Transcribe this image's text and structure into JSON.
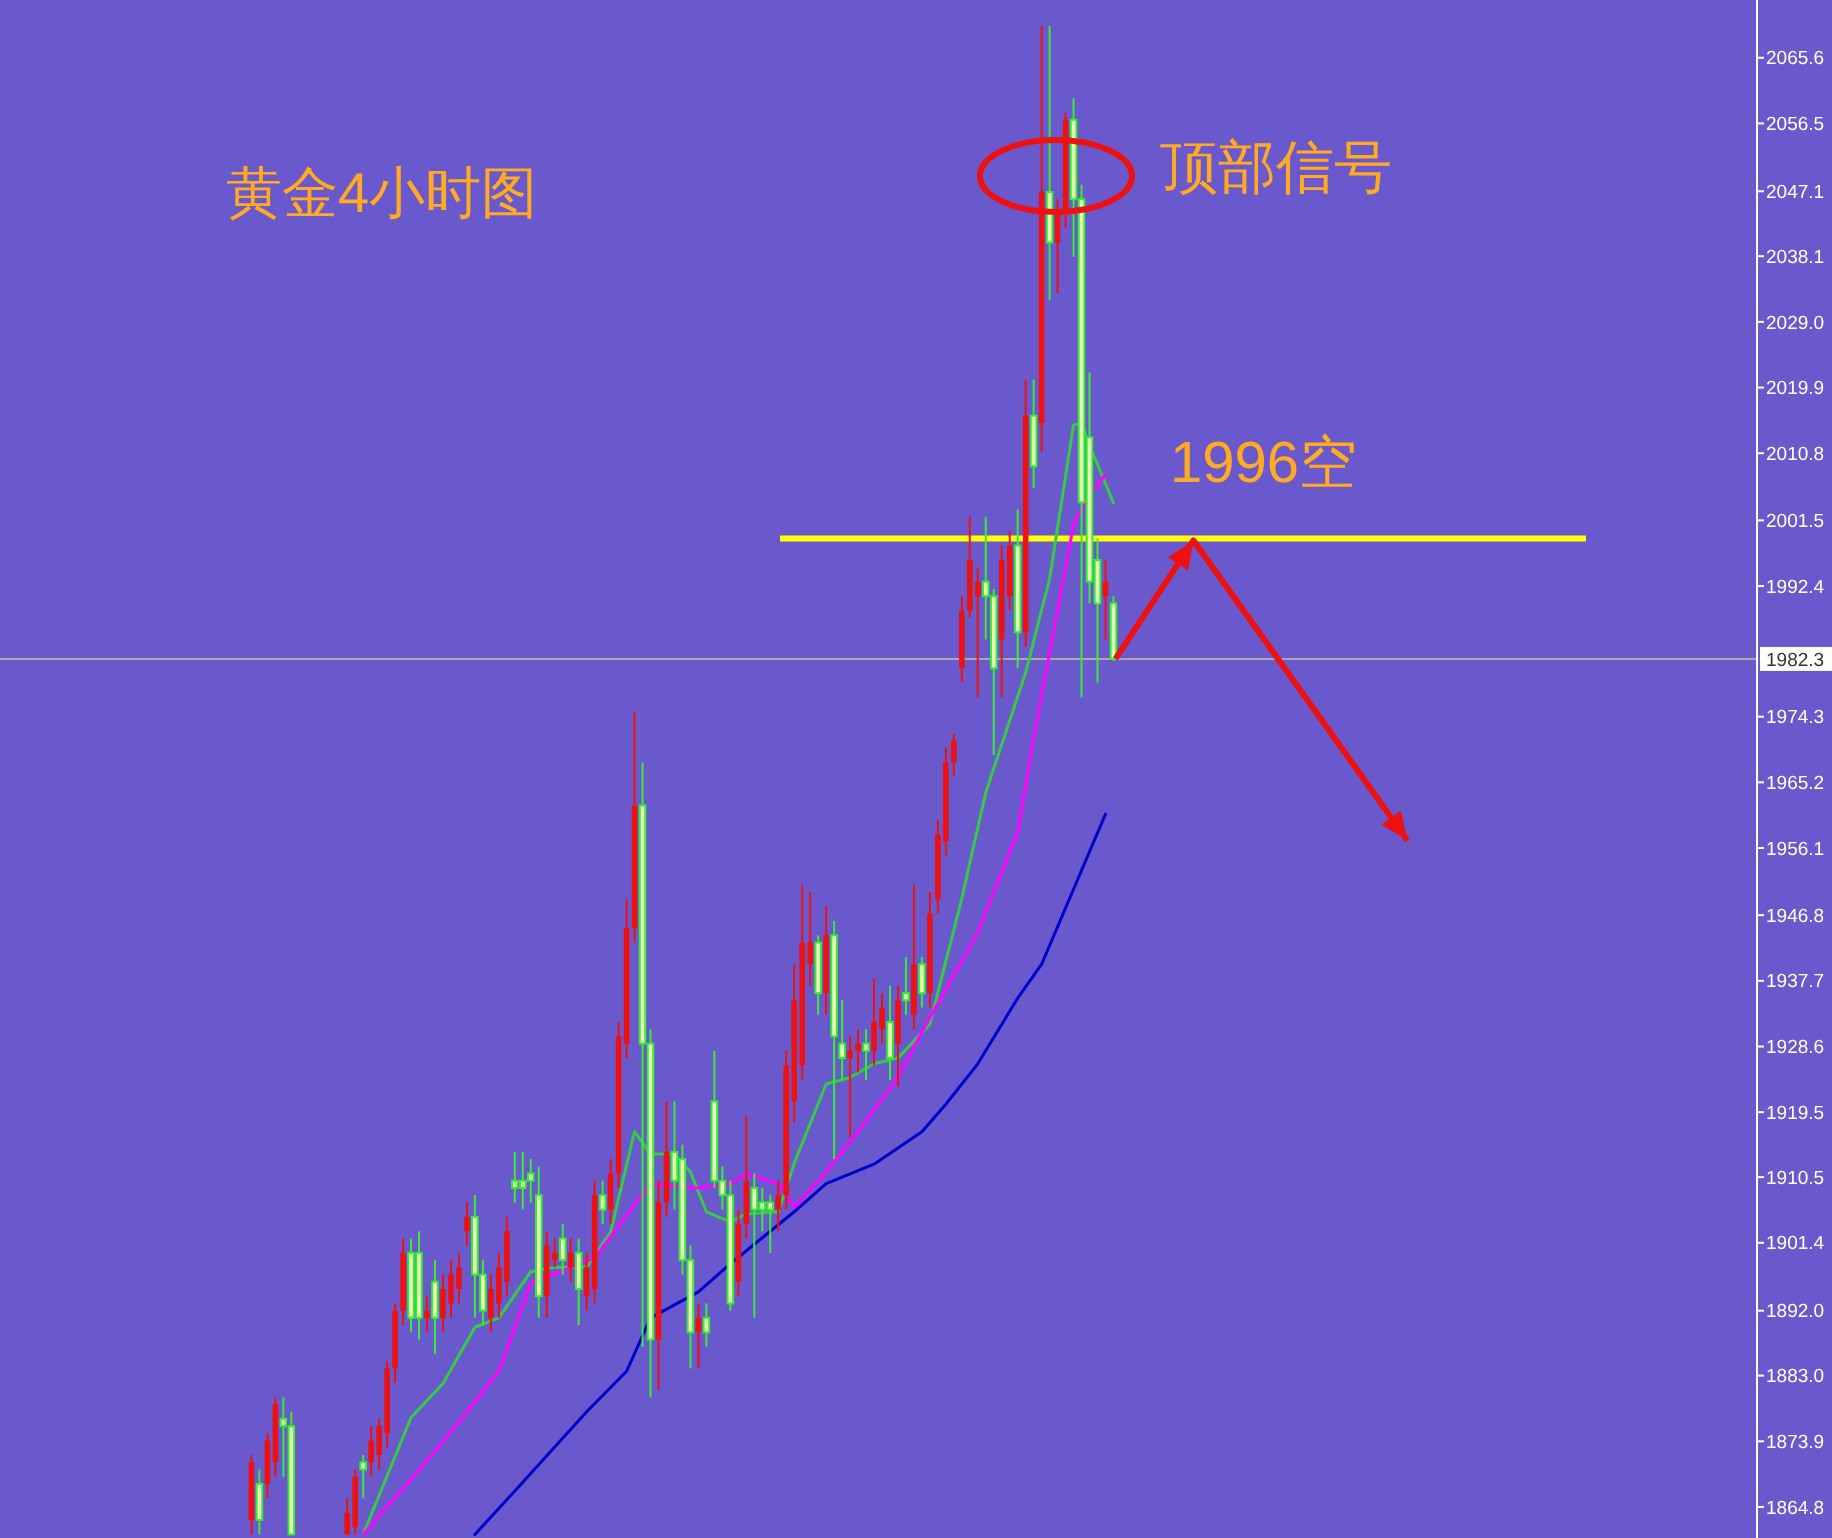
{
  "chart_data": {
    "type": "candlestick",
    "title": "黄金4小时图",
    "annotations": [
      "顶部信号"
    ],
    "categories": [
      null,
      null,
      null,
      null,
      null,
      null,
      null,
      null,
      null,
      null,
      null,
      null,
      null,
      null,
      null,
      null,
      null,
      null,
      null,
      null,
      null,
      null,
      null,
      null,
      null,
      null,
      null,
      null,
      null,
      null,
      null,
      null,
      null,
      null,
      null,
      null,
      null,
      null,
      null,
      null,
      null,
      null,
      null,
      null,
      null,
      null,
      null,
      null,
      null,
      null,
      null,
      null,
      null,
      null,
      null,
      null,
      null,
      null,
      null,
      null,
      null,
      null,
      null,
      null,
      null,
      null,
      null,
      null,
      null,
      null,
      null,
      null,
      null,
      null,
      null,
      null,
      null,
      null,
      null,
      null,
      null,
      null,
      null,
      null,
      null,
      null,
      null,
      null,
      null,
      null,
      null,
      null,
      null,
      null,
      null,
      null,
      null,
      null,
      null,
      null,
      null,
      null,
      null,
      null,
      null,
      null,
      null,
      null,
      null,
      null,
      null,
      null,
      null,
      null,
      null,
      null,
      null,
      null,
      null,
      null,
      null,
      null,
      null,
      null,
      null,
      null,
      null,
      null,
      null,
      null,
      null,
      null,
      null,
      null,
      null,
      null,
      null,
      null,
      null,
      null,
      null,
      null,
      null,
      null,
      null,
      null,
      null,
      null,
      null,
      null,
      null,
      null,
      null,
      null,
      null,
      null,
      null,
      null,
      null,
      null,
      null,
      null,
      null,
      null,
      null,
      null,
      null,
      null,
      null,
      null,
      null,
      null,
      null,
      null,
      null,
      null,
      null,
      null,
      null,
      null,
      null,
      null,
      null,
      null,
      null,
      null,
      null,
      null,
      null,
      null,
      null,
      null,
      null,
      null,
      null,
      null,
      null,
      null,
      null,
      null,
      null,
      null,
      null,
      null,
      null,
      null,
      null,
      null,
      null,
      null,
      null,
      null,
      null,
      null,
      null,
      null,
      null,
      null,
      null,
      null
    ],
    "ylim": [
      1860.5,
      2073.6
    ],
    "yticks": [
      2065.6,
      2056.5,
      2047.1,
      2038.1,
      {
        "value": 2029,
        "label": "2029.0"
      },
      2019.9,
      2010.8,
      2001.5,
      1992.4,
      1974.3,
      1965.2,
      1956.1,
      1946.8,
      1937.7,
      1928.6,
      1919.5,
      1910.5,
      1901.4,
      {
        "value": 1892,
        "label": "1892.0"
      },
      {
        "value": 1883,
        "label": "1883.0"
      },
      1873.9,
      1864.8
    ],
    "tick_labels": "y",
    "grid": false,
    "ref_lines": [
      {
        "axis": "y",
        "value": 1982.3,
        "label": "1982.3",
        "color": "#a8a8a8"
      },
      {
        "axis": "y",
        "value": 1999,
        "label": "1996空",
        "color": "#ffff00"
      }
    ],
    "series": [
      {
        "type": "candlestick",
        "colors": [
          null,
          null,
          null,
          null,
          null,
          null,
          null,
          null,
          null,
          null,
          null,
          null,
          null,
          null,
          null,
          null,
          null,
          null,
          null,
          null,
          null,
          null,
          null,
          null,
          null,
          null,
          null,
          null,
          null,
          null,
          null,
          "#ee1111",
          "#33ee33",
          "#ee1111",
          "#ee1111",
          "#33ee33",
          "#33ee33",
          null,
          null,
          null,
          null,
          null,
          null,
          "#ee1111",
          "#ee1111",
          "#33ee33",
          "#ee1111",
          "#ee1111",
          "#ee1111",
          "#ee1111",
          "#ee1111",
          "#33ee33",
          "#33ee33",
          "#ee1111",
          "#33ee33",
          "#ee1111",
          "#ee1111",
          "#ee1111",
          "#ee1111",
          "#33ee33",
          "#33ee33",
          "#ee1111",
          "#ee1111",
          "#ee1111",
          "#33ee33",
          "#33ee33",
          "#33ee33",
          "#33ee33",
          "#ee1111",
          "#ee1111",
          "#33ee33",
          "#ee1111",
          "#33ee33",
          "#ee1111",
          "#ee1111",
          "#33ee33",
          "#ee1111",
          "#ee1111",
          "#ee1111",
          "#ee1111",
          "#33ee33",
          "#33ee33",
          "#ee1111",
          "#ee1111",
          "#33ee33",
          "#33ee33",
          "#33ee33",
          "#ee1111",
          "#33ee33",
          "#33ee33",
          "#33ee33",
          "#33ee33",
          "#ee1111",
          "#ee1111",
          "#33ee33",
          "#33ee33",
          "#33ee33",
          "#ee1111",
          "#ee1111",
          "#ee1111",
          "#ee1111",
          "#ee1111",
          "#33ee33",
          "#ee1111",
          "#33ee33",
          "#33ee33",
          "#ee1111",
          "#ee1111",
          "#33ee33",
          "#ee1111",
          "#ee1111",
          "#33ee33",
          "#ee1111",
          "#33ee33",
          "#ee1111",
          "#33ee33",
          "#ee1111",
          "#ee1111",
          "#ee1111",
          "#ee1111",
          "#ee1111",
          "#ee1111",
          "#ee1111",
          "#33ee33",
          "#33ee33",
          "#ee1111",
          "#ee1111",
          "#33ee33",
          "#ee1111",
          "#33ee33",
          "#ee1111",
          "#33ee33",
          "#ee1111",
          "#ee1111",
          "#33ee33",
          "#33ee33",
          "#33ee33",
          "#33ee33",
          "#ee1111",
          "#33ee33",
          null,
          null,
          null,
          null,
          null,
          null,
          null,
          null,
          null,
          null,
          null,
          null,
          null,
          null,
          null,
          null,
          null,
          null,
          null,
          null,
          null,
          null,
          null,
          null,
          null,
          null,
          null,
          null,
          null,
          null,
          null,
          null,
          null,
          null,
          null,
          null,
          null,
          null,
          null,
          null,
          null,
          null,
          null,
          null,
          null,
          null,
          null,
          null,
          null,
          null,
          null,
          null,
          null,
          null,
          null,
          null,
          null,
          null,
          null,
          null,
          null,
          null,
          null,
          null,
          null,
          null,
          null,
          null,
          null,
          null,
          null,
          null,
          null,
          null,
          null,
          null,
          null,
          null,
          null,
          null
        ],
        "ohlc": [
          null,
          null,
          null,
          null,
          null,
          null,
          null,
          null,
          null,
          null,
          null,
          null,
          null,
          null,
          null,
          null,
          null,
          null,
          null,
          null,
          null,
          null,
          null,
          null,
          null,
          null,
          null,
          null,
          null,
          null,
          null,
          [
            1863,
            1872,
            1861,
            1871
          ],
          [
            1868,
            1870,
            1861,
            1863
          ],
          [
            1868,
            1875,
            1866,
            1874
          ],
          [
            1871,
            1880,
            1869,
            1879
          ],
          [
            1877,
            1880,
            1869,
            1876
          ],
          [
            1876,
            1878,
            1861,
            1861
          ],
          null,
          null,
          null,
          null,
          null,
          null,
          [
            1861,
            1866,
            1861,
            1864
          ],
          [
            1862,
            1870,
            1861,
            1869
          ],
          [
            1871,
            1872,
            1866,
            1870
          ],
          [
            1871,
            1876,
            1869,
            1874
          ],
          [
            1872,
            1877,
            1870,
            1876
          ],
          [
            1875,
            1885,
            1873,
            1884
          ],
          [
            1884,
            1893,
            1882,
            1892
          ],
          [
            1892,
            1902,
            1890,
            1900
          ],
          [
            1900,
            1902,
            1889,
            1891
          ],
          [
            1900,
            1903,
            1888,
            1891
          ],
          [
            1891,
            1894,
            1889,
            1892
          ],
          [
            1896,
            1899,
            1886,
            1891
          ],
          [
            1891,
            1897,
            1889,
            1895
          ],
          [
            1893,
            1899,
            1891,
            1897
          ],
          [
            1895,
            1900,
            1893,
            1898
          ],
          [
            1903,
            1907,
            1901,
            1905
          ],
          [
            1905,
            1908,
            1891,
            1897
          ],
          [
            1897,
            1899,
            1890,
            1892
          ],
          [
            1891,
            1897,
            1889,
            1895
          ],
          [
            1893,
            1900,
            1891,
            1898
          ],
          [
            1896,
            1905,
            1894,
            1903
          ],
          [
            1910,
            1914,
            1907,
            1909
          ],
          [
            1910,
            1914,
            1906,
            1909
          ],
          [
            1911,
            1913,
            1907,
            1910
          ],
          [
            1908,
            1912,
            1891,
            1894
          ],
          [
            1894,
            1903,
            1891,
            1901
          ],
          [
            1899,
            1902,
            1898,
            1900
          ],
          [
            1902,
            1904,
            1897,
            1899
          ],
          [
            1898,
            1902,
            1896,
            1900
          ],
          [
            1900,
            1902,
            1890,
            1895
          ],
          [
            1894,
            1900,
            1892,
            1898
          ],
          [
            1895,
            1910,
            1893,
            1908
          ],
          [
            1908,
            1910,
            1904,
            1906
          ],
          [
            1906,
            1913,
            1904,
            1911
          ],
          [
            1911,
            1932,
            1909,
            1930
          ],
          [
            1929,
            1949,
            1927,
            1945
          ],
          [
            1945,
            1975,
            1943,
            1962
          ],
          [
            1962,
            1968,
            1887,
            1929
          ],
          [
            1929,
            1931,
            1880,
            1888
          ],
          [
            1888,
            1910,
            1881,
            1907
          ],
          [
            1907,
            1921,
            1905,
            1914
          ],
          [
            1914,
            1921,
            1906,
            1910
          ],
          [
            1913,
            1915,
            1897,
            1899
          ],
          [
            1899,
            1901,
            1884,
            1889
          ],
          [
            1889,
            1893,
            1884,
            1891
          ],
          [
            1891,
            1893,
            1887,
            1889
          ],
          [
            1921,
            1928,
            1909,
            1910
          ],
          [
            1910,
            1912,
            1906,
            1908
          ],
          [
            1908,
            1910,
            1892,
            1893
          ],
          [
            1896,
            1906,
            1894,
            1904
          ],
          [
            1904,
            1919,
            1902,
            1910
          ],
          [
            1909,
            1911,
            1891,
            1906
          ],
          [
            1907,
            1909,
            1903,
            1906
          ],
          [
            1907,
            1908,
            1900,
            1906
          ],
          [
            1906,
            1910,
            1903,
            1908
          ],
          [
            1908,
            1928,
            1906,
            1926
          ],
          [
            1921,
            1940,
            1918,
            1935
          ],
          [
            1926,
            1951,
            1924,
            1943
          ],
          [
            1940,
            1950,
            1937,
            1943
          ],
          [
            1943,
            1944,
            1933,
            1936
          ],
          [
            1936,
            1948,
            1933,
            1944
          ],
          [
            1944,
            1946,
            1913,
            1930
          ],
          [
            1929,
            1935,
            1924,
            1927
          ],
          [
            1927,
            1930,
            1916,
            1928
          ],
          [
            1928,
            1931,
            1925,
            1929
          ],
          [
            1929,
            1931,
            1924,
            1928
          ],
          [
            1928,
            1938,
            1926,
            1932
          ],
          [
            1931,
            1936,
            1929,
            1934
          ],
          [
            1932,
            1937,
            1924,
            1927
          ],
          [
            1929,
            1937,
            1923,
            1935
          ],
          [
            1936,
            1941,
            1933,
            1935
          ],
          [
            1933,
            1951,
            1931,
            1940
          ],
          [
            1940,
            1941,
            1934,
            1936
          ],
          [
            1936,
            1950,
            1934,
            1947
          ],
          [
            1949,
            1960,
            1947,
            1958
          ],
          [
            1957,
            1970,
            1955,
            1968
          ],
          [
            1968,
            1972,
            1966,
            1971
          ],
          [
            1981,
            1991,
            1979,
            1989
          ],
          [
            1989,
            2002,
            1988,
            1996
          ],
          [
            1991,
            1995,
            1977,
            1993
          ],
          [
            1993,
            2002,
            1985,
            1991
          ],
          [
            1991,
            1992,
            1969,
            1981
          ],
          [
            1985,
            1998,
            1977,
            1996
          ],
          [
            1991,
            2000,
            1989,
            1998
          ],
          [
            1998,
            2003,
            1981,
            1986
          ],
          [
            1986,
            2021,
            1984,
            2016
          ],
          [
            2016,
            2021,
            2006,
            2009
          ],
          [
            2015,
            2070,
            2011,
            2047
          ],
          [
            2047,
            2070,
            2032,
            2040
          ],
          [
            2040,
            2046,
            2033,
            2044
          ],
          [
            2044,
            2058,
            2042,
            2057
          ],
          [
            2057,
            2060,
            2038,
            2046
          ],
          [
            2046,
            2048,
            1977,
            2004
          ],
          [
            2013,
            2022,
            1990,
            1993
          ],
          [
            1996,
            1999,
            1979,
            1990
          ],
          [
            1991,
            1996,
            1985,
            1993
          ],
          [
            1990,
            1991,
            1982,
            1982.3
          ],
          null,
          null,
          null,
          null,
          null,
          null,
          null,
          null,
          null,
          null,
          null,
          null,
          null,
          null,
          null,
          null,
          null,
          null,
          null,
          null,
          null,
          null,
          null,
          null,
          null,
          null,
          null,
          null,
          null,
          null,
          null,
          null,
          null,
          null,
          null,
          null,
          null,
          null,
          null,
          null,
          null,
          null,
          null,
          null,
          null,
          null,
          null,
          null,
          null,
          null,
          null,
          null,
          null,
          null,
          null,
          null,
          null,
          null,
          null,
          null,
          null,
          null,
          null,
          null,
          null,
          null,
          null,
          null,
          null,
          null,
          null,
          null,
          null,
          null,
          null,
          null,
          null,
          null,
          null,
          null
        ]
      },
      {
        "type": "line",
        "color": "#33cc44",
        "values": [
          null,
          null,
          null,
          null,
          null,
          null,
          null,
          null,
          null,
          null,
          null,
          null,
          null,
          null,
          null,
          null,
          null,
          null,
          null,
          null,
          null,
          null,
          null,
          null,
          null,
          null,
          null,
          null,
          null,
          null,
          null,
          null,
          null,
          null,
          null,
          null,
          null,
          null,
          null,
          null,
          null,
          null,
          null,
          null,
          null,
          1861,
          null,
          null,
          null,
          null,
          null,
          1877.2,
          null,
          null,
          null,
          1881.9,
          null,
          null,
          null,
          1889.7,
          null,
          null,
          1891.0,
          null,
          null,
          null,
          1897.4,
          null,
          null,
          1898.0,
          null,
          null,
          null,
          1898.0,
          null,
          null,
          1902.9,
          null,
          null,
          1916.8,
          null,
          1913.7,
          null,
          null,
          1913.7,
          null,
          1911.2,
          null,
          1905.7,
          null,
          null,
          1904.3,
          null,
          1905.4,
          null,
          null,
          null,
          1905.7,
          null,
          1912.4,
          null,
          null,
          null,
          1923.4,
          null,
          null,
          1924.3,
          null,
          null,
          1926.2,
          null,
          null,
          1927.0,
          null,
          null,
          null,
          1931.7,
          null,
          null,
          null,
          1949.1,
          null,
          null,
          1963.8,
          null,
          null,
          null,
          null,
          1980.4,
          null,
          null,
          1993.4,
          null,
          null,
          2014.7,
          2015.0,
          2011.9,
          null,
          null,
          2003.9,
          null,
          null,
          null,
          null,
          null,
          null,
          null,
          null,
          null,
          null,
          null,
          null,
          null,
          null,
          null,
          null,
          null,
          null,
          null,
          null,
          null,
          null,
          null,
          null,
          null,
          null,
          null,
          null,
          null,
          null,
          null,
          null,
          null,
          null,
          null,
          null,
          null,
          null,
          null,
          null,
          null,
          null,
          null,
          null,
          null,
          null,
          null,
          null,
          null,
          null,
          null,
          null,
          null,
          null,
          null,
          null,
          null,
          null,
          null,
          null,
          null,
          null,
          null,
          null,
          null,
          null,
          null,
          null,
          null,
          null,
          null,
          null,
          null,
          null,
          null,
          null,
          null,
          null,
          null,
          null
        ]
      },
      {
        "type": "line",
        "color": "#ff00ff",
        "values": [
          null,
          null,
          null,
          null,
          null,
          null,
          null,
          null,
          null,
          null,
          null,
          null,
          null,
          null,
          null,
          null,
          null,
          null,
          null,
          null,
          null,
          null,
          null,
          null,
          null,
          null,
          null,
          null,
          null,
          null,
          null,
          null,
          null,
          null,
          null,
          null,
          null,
          null,
          null,
          null,
          null,
          null,
          null,
          null,
          null,
          1861,
          null,
          null,
          null,
          null,
          null,
          null,
          null,
          null,
          1872.5,
          null,
          null,
          null,
          1878.0,
          null,
          null,
          null,
          1883.6,
          null,
          null,
          null,
          1895.8,
          null,
          null,
          1897.1,
          null,
          null,
          null,
          null,
          1899.3,
          null,
          null,
          null,
          null,
          null,
          null,
          1909.6,
          null,
          null,
          null,
          null,
          null,
          1909.0,
          null,
          null,
          null,
          1909.6,
          null,
          1911.0,
          null,
          null,
          null,
          1909.6,
          null,
          1906.3,
          null,
          null,
          null,
          1911.2,
          null,
          null,
          null,
          1916.8,
          null,
          null,
          null,
          null,
          1924.3,
          null,
          null,
          1930.6,
          null,
          null,
          null,
          null,
          null,
          null,
          1944.4,
          null,
          null,
          null,
          null,
          1958.3,
          null,
          1971.3,
          null,
          null,
          null,
          null,
          2000.9,
          null,
          2005.3,
          null,
          2007.8,
          null,
          null,
          null,
          null,
          null,
          null,
          null,
          null,
          null,
          null,
          null,
          null,
          null,
          null,
          null,
          null,
          null,
          null,
          null,
          null,
          null,
          null,
          null,
          null,
          null,
          null,
          null,
          null,
          null,
          null,
          null,
          null,
          null,
          null,
          null,
          null,
          null,
          null,
          null,
          null,
          null,
          null,
          null,
          null,
          null,
          null,
          null,
          null,
          null,
          null,
          null,
          null,
          null,
          null,
          null,
          null,
          null,
          null,
          null,
          null,
          null,
          null,
          null,
          null,
          null,
          null,
          null,
          null,
          null,
          null,
          null,
          null,
          null,
          null,
          null,
          null,
          null,
          null,
          null,
          null,
          null
        ]
      },
      {
        "type": "line",
        "color": "#0000cc",
        "values": [
          null,
          null,
          null,
          null,
          null,
          null,
          null,
          null,
          null,
          null,
          null,
          null,
          null,
          null,
          null,
          null,
          null,
          null,
          null,
          null,
          null,
          null,
          null,
          null,
          null,
          null,
          null,
          null,
          null,
          null,
          null,
          null,
          null,
          null,
          null,
          null,
          null,
          null,
          null,
          null,
          null,
          null,
          null,
          null,
          null,
          null,
          null,
          null,
          null,
          null,
          null,
          null,
          null,
          null,
          null,
          null,
          null,
          null,
          null,
          1861,
          null,
          null,
          null,
          null,
          1867.0,
          null,
          null,
          null,
          null,
          null,
          null,
          null,
          null,
          1878.0,
          null,
          null,
          null,
          null,
          1883.6,
          null,
          null,
          1891.0,
          null,
          null,
          null,
          null,
          null,
          1894.6,
          null,
          null,
          null,
          1898.5,
          null,
          null,
          null,
          1902.1,
          null,
          null,
          null,
          1905.7,
          null,
          null,
          null,
          1909.6,
          null,
          null,
          null,
          null,
          null,
          1912.3,
          null,
          null,
          null,
          null,
          null,
          1916.8,
          null,
          null,
          1920.6,
          null,
          null,
          null,
          1926.2,
          null,
          null,
          null,
          null,
          1935.3,
          null,
          null,
          1940.0,
          null,
          null,
          null,
          null,
          null,
          null,
          null,
          1960.8,
          null,
          null,
          null,
          null,
          null,
          null,
          null,
          null,
          null,
          null,
          null,
          null,
          null,
          null,
          null,
          null,
          null,
          null,
          null,
          null,
          null,
          null,
          null,
          null,
          null,
          null,
          null,
          null,
          null,
          null,
          null,
          null,
          null,
          null,
          null,
          null,
          null,
          null,
          null,
          null,
          null,
          null,
          null,
          null,
          null,
          null,
          null,
          null,
          null,
          null,
          null,
          null,
          null,
          null,
          null,
          null,
          null,
          null,
          null,
          null,
          null,
          null,
          null,
          null,
          null,
          null,
          null,
          null,
          null,
          null,
          null,
          null,
          null,
          null,
          null,
          null,
          null,
          null,
          null,
          null,
          null
        ]
      }
    ]
  }
}
